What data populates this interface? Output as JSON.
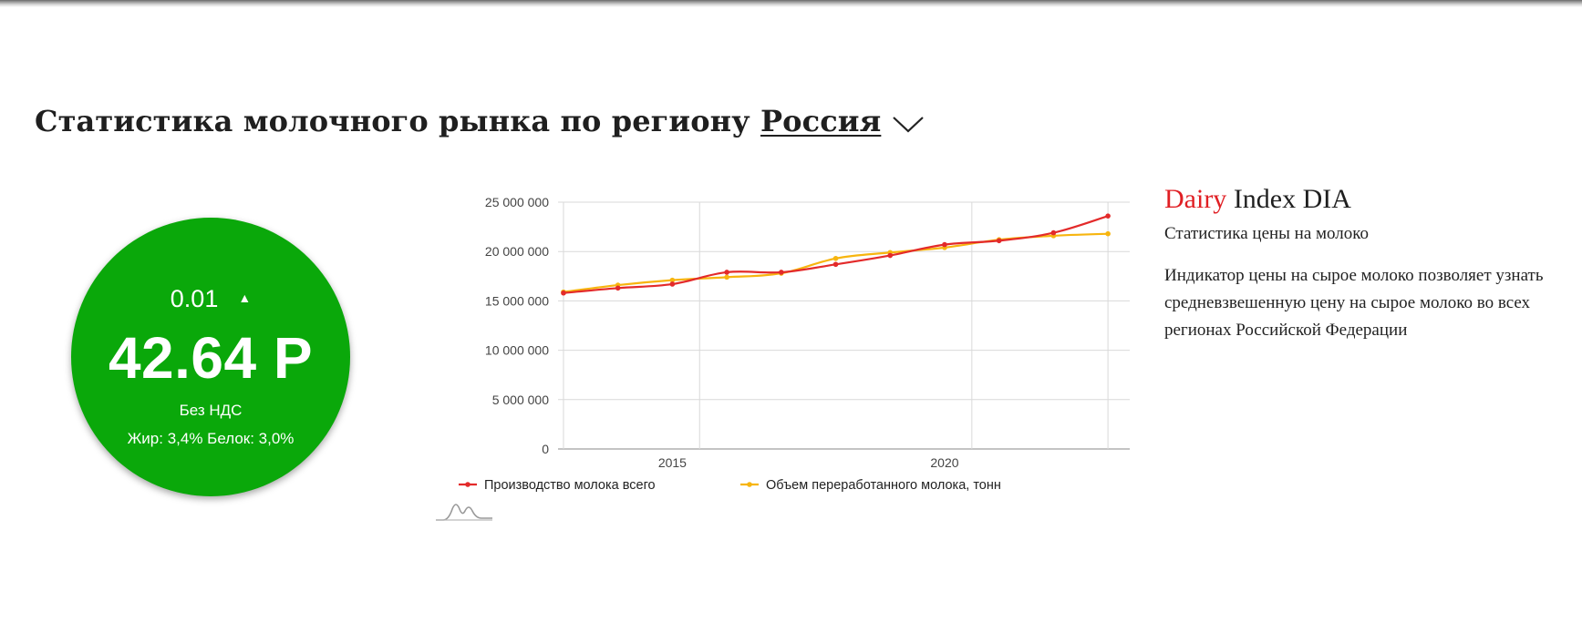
{
  "header": {
    "title": "Статистика молочного рынка по региону",
    "region": "Россия"
  },
  "price_card": {
    "change": "0.01",
    "change_arrow": "▲",
    "price": "42.64 Р",
    "vat_note": "Без НДС",
    "specs": "Жир: 3,4% Белок: 3,0%",
    "bg_color": "#0aa80a"
  },
  "info": {
    "brand_red": "Dairy",
    "brand_rest": "Index DIA",
    "subtitle": "Статистика цены на молоко",
    "description": "Индикатор цены на сырое молоко позволяет узнать средневзвешенную цену на сырое молоко во всех регионах Российской Федерации",
    "brand_color": "#e01f24"
  },
  "chart_data": {
    "type": "line",
    "x": [
      2013,
      2014,
      2015,
      2016,
      2017,
      2018,
      2019,
      2020,
      2021,
      2022,
      2023
    ],
    "x_ticks": [
      2015,
      2020
    ],
    "ylim": [
      0,
      25000000
    ],
    "y_ticks": [
      "0",
      "5 000 000",
      "10 000 000",
      "15 000 000",
      "20 000 000",
      "25 000 000"
    ],
    "grid": true,
    "legend_position": "bottom-left",
    "series": [
      {
        "name": "Производство молока всего",
        "color": "#e32a2a",
        "values": [
          15800000,
          16300000,
          16700000,
          17900000,
          17900000,
          18700000,
          19600000,
          20700000,
          21100000,
          21900000,
          23600000
        ]
      },
      {
        "name": "Объем переработанного молока, тонн",
        "color": "#f7b50f",
        "values": [
          15900000,
          16600000,
          17100000,
          17400000,
          17800000,
          19300000,
          19900000,
          20400000,
          21200000,
          21600000,
          21800000
        ]
      }
    ]
  }
}
